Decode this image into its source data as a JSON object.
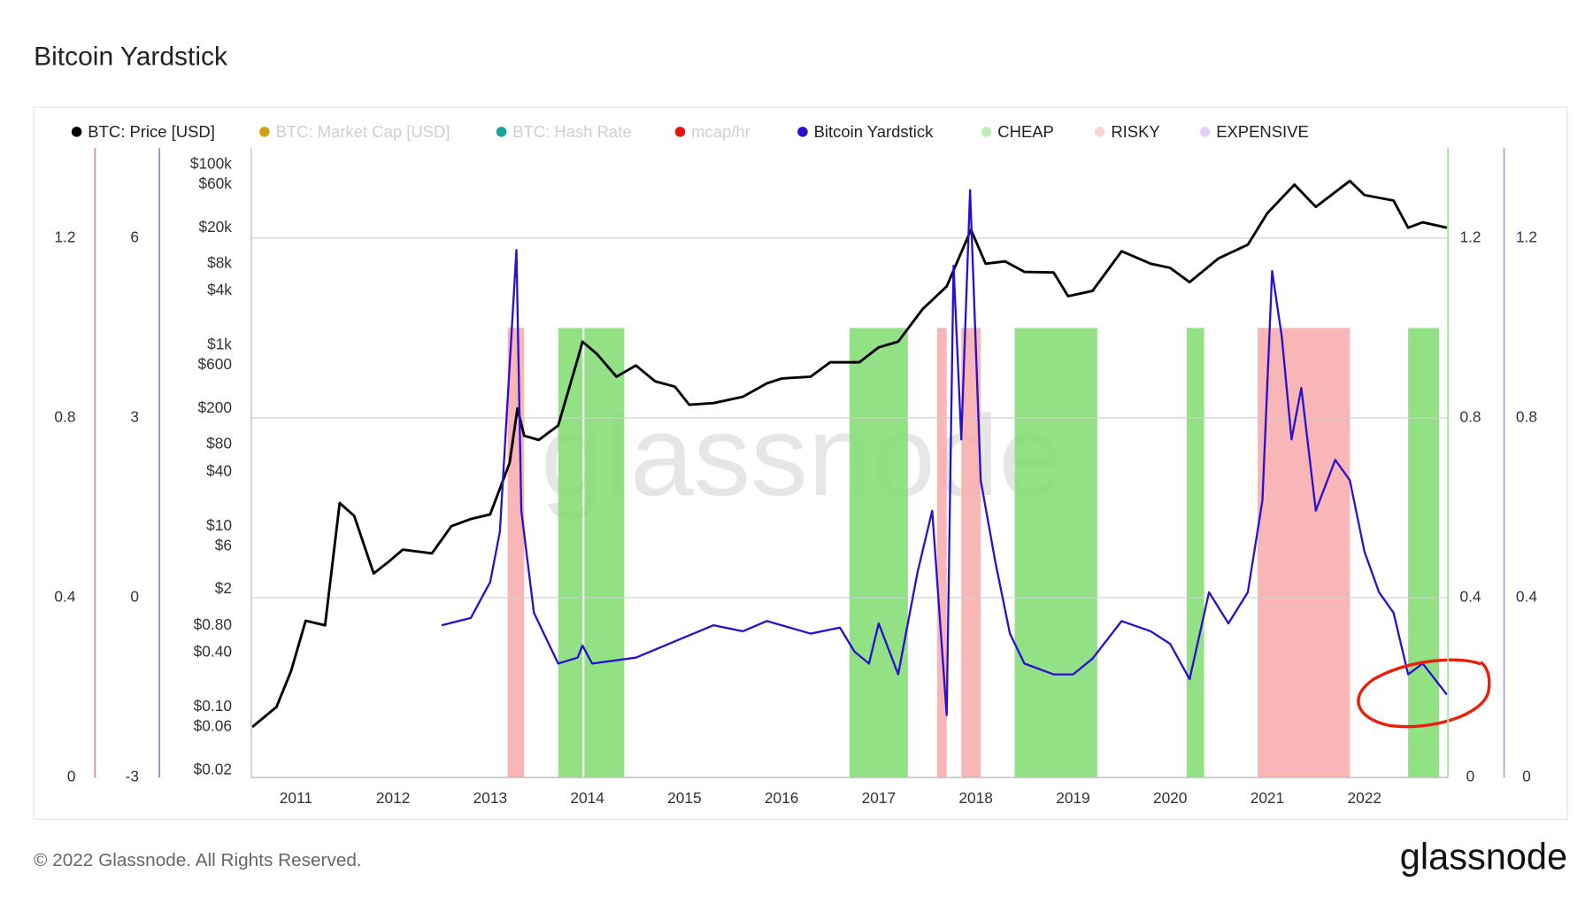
{
  "chart_data": {
    "type": "line",
    "title": "Bitcoin Yardstick",
    "watermark": "glassnode",
    "xlim": [
      2010.54,
      2022.86
    ],
    "xticks": [
      2011,
      2012,
      2013,
      2014,
      2015,
      2016,
      2017,
      2018,
      2019,
      2020,
      2021,
      2022
    ],
    "axes": [
      {
        "side": "left",
        "color": "#f08080",
        "ylim": [
          0,
          1.4
        ],
        "yticks": [
          0,
          0.4,
          0.8,
          1.2
        ],
        "grid": true
      },
      {
        "side": "left",
        "color": "#9a80d8",
        "ylim": [
          -3,
          7.5
        ],
        "yticks": [
          -3,
          0,
          3,
          6
        ]
      },
      {
        "side": "left",
        "color": "#cccccc",
        "log": true,
        "ylim": [
          0.0166,
          152000
        ],
        "yticks": [
          {
            "value": 100000,
            "label": "$100k"
          },
          {
            "value": 60000,
            "label": "$60k"
          },
          {
            "value": 20000,
            "label": "$20k"
          },
          {
            "value": 8000,
            "label": "$8k"
          },
          {
            "value": 4000,
            "label": "$4k"
          },
          {
            "value": 1000,
            "label": "$1k"
          },
          {
            "value": 600,
            "label": "$600"
          },
          {
            "value": 200,
            "label": "$200"
          },
          {
            "value": 80,
            "label": "$80"
          },
          {
            "value": 40,
            "label": "$40"
          },
          {
            "value": 10,
            "label": "$10"
          },
          {
            "value": 6,
            "label": "$6"
          },
          {
            "value": 2,
            "label": "$2"
          },
          {
            "value": 0.8,
            "label": "$0.80"
          },
          {
            "value": 0.4,
            "label": "$0.40"
          },
          {
            "value": 0.1,
            "label": "$0.10"
          },
          {
            "value": 0.06,
            "label": "$0.06"
          },
          {
            "value": 0.02,
            "label": "$0.02"
          }
        ]
      },
      {
        "side": "right",
        "color": "#a8e0a0",
        "ylim": [
          0,
          1.4
        ],
        "yticks": [
          0,
          0.4,
          0.8,
          1.2
        ]
      },
      {
        "side": "right",
        "color": "#b89ae0",
        "ylim": [
          0,
          1.4
        ],
        "yticks": [
          0,
          0.4,
          0.8,
          1.2
        ]
      }
    ],
    "series": [
      {
        "name": "BTC: Price [USD]",
        "color": "#000000",
        "axis": 2,
        "x": [
          2010.55,
          2010.8,
          2010.95,
          2011.1,
          2011.3,
          2011.45,
          2011.6,
          2011.8,
          2011.95,
          2012.1,
          2012.4,
          2012.6,
          2012.8,
          2013.0,
          2013.2,
          2013.28,
          2013.35,
          2013.5,
          2013.7,
          2013.9,
          2013.95,
          2014.1,
          2014.3,
          2014.5,
          2014.7,
          2014.9,
          2015.05,
          2015.3,
          2015.6,
          2015.85,
          2016.0,
          2016.3,
          2016.5,
          2016.8,
          2017.0,
          2017.2,
          2017.45,
          2017.7,
          2017.95,
          2018.1,
          2018.3,
          2018.5,
          2018.8,
          2018.95,
          2019.2,
          2019.5,
          2019.8,
          2020.0,
          2020.2,
          2020.5,
          2020.8,
          2021.0,
          2021.28,
          2021.5,
          2021.85,
          2022.0,
          2022.3,
          2022.45,
          2022.6,
          2022.85
        ],
        "values": [
          0.06,
          0.1,
          0.25,
          0.9,
          0.8,
          18,
          13,
          3,
          4,
          5.5,
          5,
          10,
          12,
          13.5,
          50,
          200,
          100,
          90,
          130,
          700,
          1100,
          800,
          450,
          600,
          400,
          350,
          220,
          230,
          270,
          380,
          430,
          450,
          650,
          650,
          950,
          1100,
          2500,
          4500,
          19000,
          8000,
          8500,
          6500,
          6400,
          3500,
          4000,
          11000,
          8000,
          7200,
          5000,
          9200,
          13000,
          29000,
          60000,
          34000,
          66000,
          46000,
          40000,
          20000,
          23000,
          20000
        ]
      },
      {
        "name": "BTC: Market Cap [USD]",
        "color": "#d4a017",
        "hidden": true
      },
      {
        "name": "BTC: Hash Rate",
        "color": "#1aa39a",
        "hidden": true
      },
      {
        "name": "mcap/hr",
        "color": "#ee1111",
        "hidden": true
      },
      {
        "name": "Bitcoin Yardstick",
        "color": "#2a0fd0",
        "axis": 1,
        "x": [
          2012.5,
          2012.8,
          2013.0,
          2013.1,
          2013.27,
          2013.32,
          2013.45,
          2013.7,
          2013.9,
          2013.95,
          2014.05,
          2014.5,
          2015.3,
          2015.6,
          2015.85,
          2016.3,
          2016.6,
          2016.75,
          2016.9,
          2017.0,
          2017.2,
          2017.4,
          2017.55,
          2017.7,
          2017.77,
          2017.85,
          2017.94,
          2018.05,
          2018.2,
          2018.35,
          2018.5,
          2018.8,
          2019.0,
          2019.2,
          2019.5,
          2019.8,
          2020.0,
          2020.2,
          2020.4,
          2020.6,
          2020.8,
          2020.95,
          2021.05,
          2021.15,
          2021.25,
          2021.35,
          2021.5,
          2021.7,
          2021.85,
          2022.0,
          2022.15,
          2022.3,
          2022.45,
          2022.6,
          2022.85
        ],
        "values": [
          -0.46,
          -0.34,
          0.26,
          1.1,
          5.8,
          1.45,
          -0.25,
          -1.1,
          -1.0,
          -0.8,
          -1.1,
          -1.0,
          -0.46,
          -0.56,
          -0.39,
          -0.6,
          -0.5,
          -0.9,
          -1.1,
          -0.43,
          -1.28,
          0.43,
          1.45,
          -1.96,
          5.54,
          2.64,
          6.8,
          1.96,
          0.6,
          -0.6,
          -1.1,
          -1.28,
          -1.28,
          -1.02,
          -0.39,
          -0.56,
          -0.77,
          -1.36,
          0.09,
          -0.43,
          0.09,
          1.62,
          5.45,
          4.35,
          2.64,
          3.5,
          1.45,
          2.3,
          1.96,
          0.77,
          0.09,
          -0.25,
          -1.28,
          -1.1,
          -1.62
        ]
      },
      {
        "name": "CHEAP",
        "color": "#7fdc70",
        "type": "band",
        "axis": 3,
        "level": 1,
        "ranges": [
          [
            2013.7,
            2013.95
          ],
          [
            2013.97,
            2014.38
          ],
          [
            2016.7,
            2017.3
          ],
          [
            2018.4,
            2019.25
          ],
          [
            2020.17,
            2020.35
          ],
          [
            2022.45,
            2022.77
          ]
        ]
      },
      {
        "name": "RISKY",
        "color": "#f7a9a9",
        "type": "band",
        "axis": 0,
        "level": 1,
        "ranges": [
          [
            2013.18,
            2013.35
          ],
          [
            2017.6,
            2017.7
          ],
          [
            2017.85,
            2018.05
          ],
          [
            2020.9,
            2021.85
          ]
        ]
      },
      {
        "name": "EXPENSIVE",
        "color": "#c3a6ea",
        "type": "band",
        "axis": 4
      }
    ]
  },
  "footer": {
    "copyright": "© 2022 Glassnode. All Rights Reserved.",
    "logo": "glassnode"
  }
}
